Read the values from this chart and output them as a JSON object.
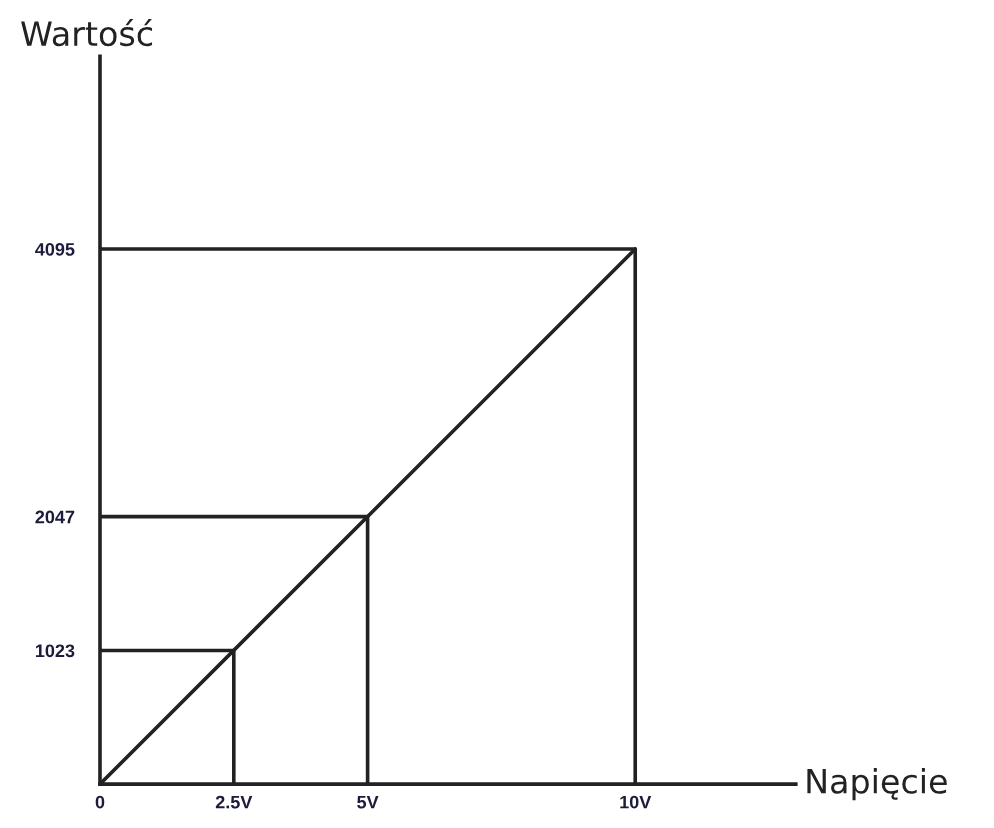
{
  "chart_data": {
    "type": "line",
    "xlabel": "Napięcie",
    "ylabel": "Wartość",
    "series": [
      {
        "x": [
          0,
          10
        ],
        "values": [
          0,
          4095
        ],
        "color": "#222222"
      },
      {
        "x": [
          0,
          2.5,
          2.5
        ],
        "values": [
          1023,
          1023,
          0
        ],
        "color": "#222222"
      },
      {
        "x": [
          0,
          5,
          5
        ],
        "values": [
          2047,
          2047,
          0
        ],
        "color": "#222222"
      },
      {
        "x": [
          0,
          10,
          10
        ],
        "values": [
          4095,
          4095,
          0
        ],
        "color": "#222222"
      }
    ],
    "xlim": [
      0,
      13
    ],
    "ylim": [
      0,
      5570
    ],
    "xticks": [
      0,
      {
        "value": 2.5,
        "label": "2.5V"
      },
      {
        "value": 5,
        "label": "5V"
      },
      {
        "value": 10,
        "label": "10V"
      }
    ],
    "yticks": [
      1023,
      2047,
      4095
    ],
    "line_style": "solid"
  }
}
